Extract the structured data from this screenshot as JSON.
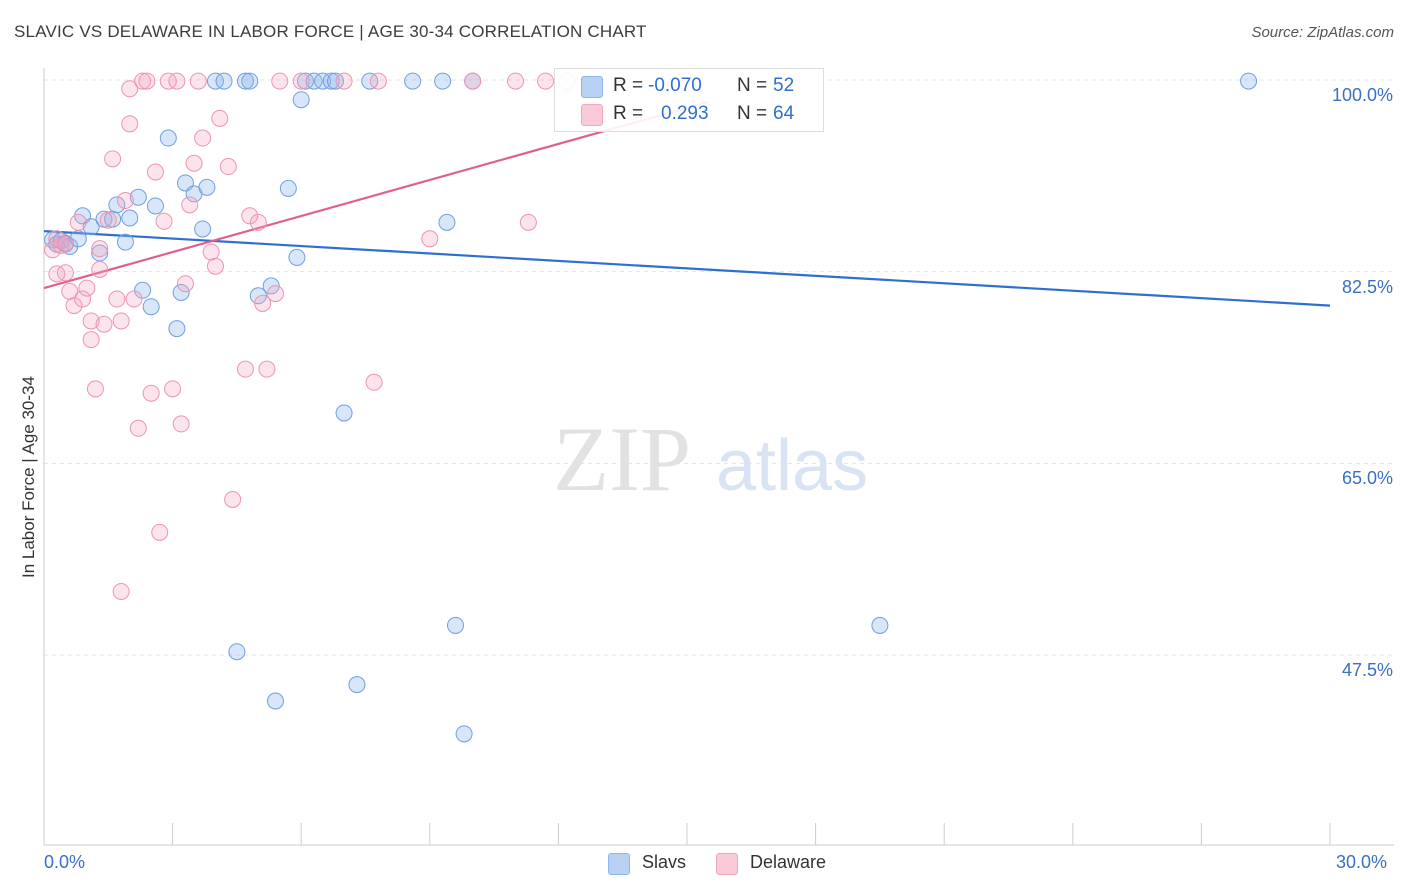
{
  "title": "SLAVIC VS DELAWARE IN LABOR FORCE | AGE 30-34 CORRELATION CHART",
  "source": "Source: ZipAtlas.com",
  "watermark": {
    "zip": "ZIP",
    "atlas": "atlas"
  },
  "colors": {
    "slavs": "#8fb7ee",
    "slavs_line": "#2f6fcf",
    "delaware": "#f4a6bf",
    "delaware_line": "#e0608b",
    "axis_text": "#3a6fc4"
  },
  "legend": {
    "slavs": {
      "r_label": "R =",
      "r_value": "-0.070",
      "n_label": "N =",
      "n_value": "52"
    },
    "delaware": {
      "r_label": "R =",
      "r_value": "0.293",
      "n_label": "N =",
      "n_value": "64"
    }
  },
  "chart_data": {
    "type": "scatter",
    "title": "SLAVIC VS DELAWARE IN LABOR FORCE | AGE 30-34 CORRELATION CHART",
    "xlabel": "",
    "ylabel": "In Labor Force | Age 30-34",
    "xlim": [
      0,
      30
    ],
    "ylim": [
      31,
      102
    ],
    "x_tick_labels": [
      "0.0%",
      "30.0%"
    ],
    "y_ticks": [
      47.5,
      65.0,
      82.5,
      100.0
    ],
    "y_tick_labels": [
      "47.5%",
      "65.0%",
      "82.5%",
      "100.0%"
    ],
    "legend_position": "bottom-center",
    "series": [
      {
        "name": "Slavs",
        "points": [
          [
            0.2,
            85.4
          ],
          [
            0.3,
            85.0
          ],
          [
            0.4,
            85.3
          ],
          [
            0.5,
            85.1
          ],
          [
            0.6,
            84.8
          ],
          [
            0.8,
            85.5
          ],
          [
            0.9,
            87.6
          ],
          [
            1.1,
            86.6
          ],
          [
            1.3,
            84.2
          ],
          [
            1.4,
            87.3
          ],
          [
            1.6,
            87.3
          ],
          [
            1.7,
            88.6
          ],
          [
            1.9,
            85.2
          ],
          [
            2.0,
            87.4
          ],
          [
            2.2,
            89.3
          ],
          [
            2.3,
            80.8
          ],
          [
            2.5,
            79.3
          ],
          [
            2.6,
            88.5
          ],
          [
            2.9,
            94.7
          ],
          [
            3.1,
            77.3
          ],
          [
            3.2,
            80.6
          ],
          [
            3.3,
            90.6
          ],
          [
            3.5,
            89.6
          ],
          [
            3.7,
            86.4
          ],
          [
            3.8,
            90.2
          ],
          [
            4.0,
            99.9
          ],
          [
            4.2,
            99.9
          ],
          [
            4.5,
            47.8
          ],
          [
            4.7,
            99.9
          ],
          [
            4.8,
            99.9
          ],
          [
            5.0,
            80.3
          ],
          [
            5.3,
            81.2
          ],
          [
            5.4,
            43.3
          ],
          [
            5.7,
            90.1
          ],
          [
            5.9,
            83.8
          ],
          [
            6.0,
            98.2
          ],
          [
            6.1,
            99.9
          ],
          [
            6.3,
            99.9
          ],
          [
            6.5,
            99.9
          ],
          [
            6.7,
            99.9
          ],
          [
            6.8,
            99.9
          ],
          [
            7.0,
            69.6
          ],
          [
            7.3,
            44.8
          ],
          [
            7.6,
            99.9
          ],
          [
            8.6,
            99.9
          ],
          [
            9.3,
            99.9
          ],
          [
            9.4,
            87.0
          ],
          [
            9.6,
            50.2
          ],
          [
            9.8,
            40.3
          ],
          [
            10.0,
            99.9
          ],
          [
            19.5,
            50.2
          ],
          [
            28.1,
            99.9
          ]
        ]
      },
      {
        "name": "Delaware",
        "points": [
          [
            0.2,
            84.5
          ],
          [
            0.3,
            85.5
          ],
          [
            0.3,
            82.3
          ],
          [
            0.4,
            84.9
          ],
          [
            0.5,
            85.0
          ],
          [
            0.5,
            82.4
          ],
          [
            0.6,
            80.7
          ],
          [
            0.7,
            79.4
          ],
          [
            0.8,
            87.0
          ],
          [
            0.9,
            80.0
          ],
          [
            1.0,
            81.0
          ],
          [
            1.1,
            76.3
          ],
          [
            1.1,
            78.0
          ],
          [
            1.2,
            71.8
          ],
          [
            1.3,
            82.7
          ],
          [
            1.3,
            84.6
          ],
          [
            1.4,
            77.7
          ],
          [
            1.5,
            87.2
          ],
          [
            1.6,
            92.8
          ],
          [
            1.7,
            80.0
          ],
          [
            1.8,
            53.3
          ],
          [
            1.8,
            78.0
          ],
          [
            1.9,
            89.0
          ],
          [
            2.0,
            96.0
          ],
          [
            2.0,
            99.2
          ],
          [
            2.1,
            80.0
          ],
          [
            2.2,
            68.2
          ],
          [
            2.3,
            99.9
          ],
          [
            2.4,
            99.9
          ],
          [
            2.5,
            71.4
          ],
          [
            2.6,
            91.6
          ],
          [
            2.7,
            58.7
          ],
          [
            2.8,
            87.1
          ],
          [
            2.9,
            99.9
          ],
          [
            3.0,
            71.8
          ],
          [
            3.1,
            99.9
          ],
          [
            3.2,
            68.6
          ],
          [
            3.3,
            81.4
          ],
          [
            3.4,
            88.6
          ],
          [
            3.5,
            92.4
          ],
          [
            3.6,
            99.9
          ],
          [
            3.7,
            94.7
          ],
          [
            3.9,
            84.3
          ],
          [
            4.0,
            83.0
          ],
          [
            4.1,
            96.5
          ],
          [
            4.3,
            92.1
          ],
          [
            4.4,
            61.7
          ],
          [
            4.7,
            73.6
          ],
          [
            4.8,
            87.6
          ],
          [
            5.0,
            87.0
          ],
          [
            5.1,
            79.6
          ],
          [
            5.2,
            73.6
          ],
          [
            5.4,
            80.5
          ],
          [
            5.5,
            99.9
          ],
          [
            6.0,
            99.9
          ],
          [
            7.0,
            99.9
          ],
          [
            7.7,
            72.4
          ],
          [
            7.8,
            99.9
          ],
          [
            9.0,
            85.5
          ],
          [
            10.0,
            99.9
          ],
          [
            11.0,
            99.9
          ],
          [
            11.3,
            87.0
          ],
          [
            11.7,
            99.9
          ],
          [
            12.2,
            99.9
          ]
        ]
      }
    ],
    "trend_lines": [
      {
        "series": "Slavs",
        "x": [
          0,
          30
        ],
        "y": [
          86.2,
          79.4
        ]
      },
      {
        "series": "Delaware",
        "x": [
          0,
          15.5
        ],
        "y": [
          81.0,
          98.0
        ]
      }
    ]
  },
  "bottom_legend": {
    "slavs_label": "Slavs",
    "delaware_label": "Delaware"
  }
}
